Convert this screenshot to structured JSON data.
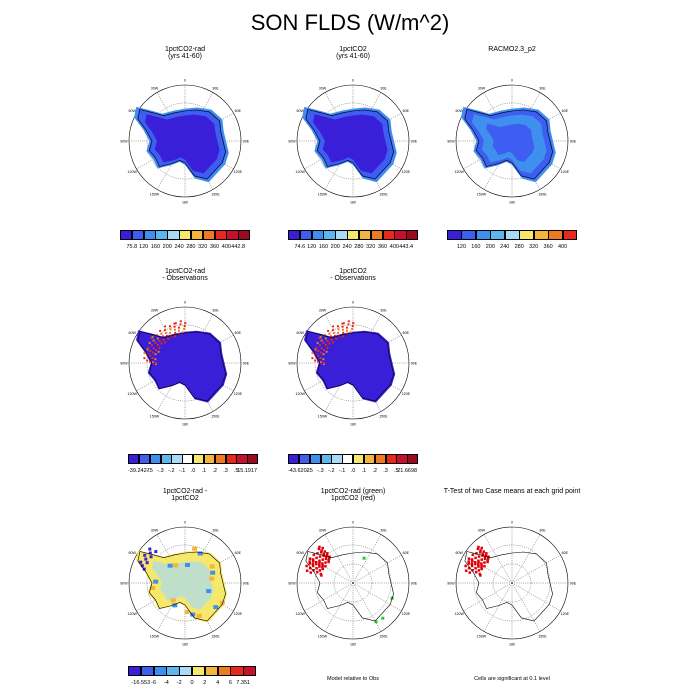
{
  "title": "SON FLDS (W/m^2)",
  "colors": {
    "level_colors": [
      "#3a1fd8",
      "#3d5ef0",
      "#3f8fee",
      "#5db6f0",
      "#a9dcf4",
      "#f5e86a",
      "#f5b43c",
      "#f07a20",
      "#e8281c",
      "#c8102e"
    ],
    "anomaly_colors": [
      "#3a1fd8",
      "#3f5ef0",
      "#3f8fee",
      "#5db6f0",
      "#a9dcf4",
      "#f5e86a",
      "#f5b43c",
      "#f07a20",
      "#e8281c",
      "#c8102e"
    ],
    "dominant_fill": "#3a1fd8",
    "green": "#22cc22",
    "red": "#e0000a"
  },
  "chart_data": [
    {
      "type": "heatmap",
      "panel": "top-left",
      "title": [
        "1pctCO2-rad",
        "(yrs 41-60)"
      ],
      "colorbar_labels": [
        "75.8",
        "120",
        "160",
        "200",
        "240",
        "280",
        "320",
        "360",
        "400",
        "442.8"
      ],
      "longitude_labels": [
        "0",
        "30E",
        "60E",
        "90E",
        "120E",
        "150E",
        "180",
        "150W",
        "120W",
        "90W",
        "60W",
        "30W"
      ]
    },
    {
      "type": "heatmap",
      "panel": "top-middle",
      "title": [
        "1pctCO2",
        "(yrs 41-60)"
      ],
      "colorbar_labels": [
        "74.6",
        "120",
        "160",
        "200",
        "240",
        "280",
        "320",
        "360",
        "400",
        "443.4"
      ],
      "longitude_labels": [
        "0",
        "30E",
        "60E",
        "90E",
        "120E",
        "150E",
        "180",
        "150W",
        "120W",
        "90W",
        "60W",
        "30W"
      ]
    },
    {
      "type": "heatmap",
      "panel": "top-right",
      "title": [
        "RACMO2.3_p2"
      ],
      "colorbar_labels": [
        "120",
        "160",
        "200",
        "240",
        "280",
        "320",
        "360",
        "400"
      ],
      "longitude_labels": [
        "0",
        "30E",
        "60E",
        "90E",
        "120E",
        "150E",
        "180",
        "150W",
        "120W",
        "90W",
        "60W",
        "30W"
      ]
    },
    {
      "type": "heatmap",
      "panel": "middle-left",
      "title": [
        "1pctCO2-rad",
        "- Observations"
      ],
      "colorbar_labels": [
        "-39.2427",
        "-.5",
        "-.3",
        "-.2",
        "-.1",
        ".0",
        ".1",
        ".2",
        ".3",
        ".5",
        "15.1917"
      ],
      "longitude_labels": [
        "0",
        "30E",
        "60E",
        "90E",
        "120E",
        "150E",
        "180",
        "150W",
        "120W",
        "90W",
        "60W",
        "30W"
      ]
    },
    {
      "type": "heatmap",
      "panel": "middle-middle",
      "title": [
        "1pctCO2",
        "- Observations"
      ],
      "colorbar_labels": [
        "-43.6202",
        "-.5",
        "-.3",
        "-.2",
        "-.1",
        ".0",
        ".1",
        ".2",
        ".3",
        ".5",
        "21.6698"
      ],
      "longitude_labels": [
        "0",
        "30E",
        "60E",
        "90E",
        "120E",
        "150E",
        "180",
        "150W",
        "120W",
        "90W",
        "60W",
        "30W"
      ]
    },
    {
      "type": "heatmap",
      "panel": "bottom-left",
      "title": [
        "1pctCO2-rad -",
        "1pctCO2"
      ],
      "colorbar_labels": [
        "-16.553",
        "-6",
        "-4",
        "-2",
        "0",
        "2",
        "4",
        "6",
        "7.351"
      ],
      "longitude_labels": [
        "0",
        "30E",
        "60E",
        "90E",
        "120E",
        "150E",
        "180",
        "150W",
        "120W",
        "90W",
        "60W",
        "30W"
      ]
    },
    {
      "type": "heatmap",
      "panel": "bottom-middle",
      "title": [
        "1pctCO2-rad (green)",
        "1pctCO2 (red)"
      ],
      "note": "Model relative to Obs",
      "longitude_labels": [
        "0",
        "30E",
        "60E",
        "90E",
        "120E",
        "150E",
        "180",
        "150W",
        "120W",
        "90W",
        "60W",
        "30W"
      ]
    },
    {
      "type": "heatmap",
      "panel": "bottom-right",
      "title": [
        "T-Test of two Case means at each grid point"
      ],
      "note": "Cells are significant at 0.1 level",
      "longitude_labels": [
        "0",
        "30E",
        "60E",
        "90E",
        "120E",
        "150E",
        "180",
        "150W",
        "120W",
        "90W",
        "60W",
        "30W"
      ]
    }
  ]
}
